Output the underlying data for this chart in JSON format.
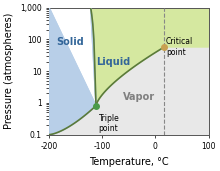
{
  "title": "",
  "xlabel": "Temperature, °C",
  "ylabel": "Pressure (atmospheres)",
  "xlim": [
    -200,
    100
  ],
  "ylim_log": [
    0.1,
    1000
  ],
  "xticks": [
    -200,
    -100,
    0,
    100
  ],
  "yticks": [
    0.1,
    1,
    10,
    100,
    1000
  ],
  "ytick_labels": [
    "0.1",
    "1",
    "10",
    "100",
    "1,000"
  ],
  "triple_point": [
    -111.8,
    0.816
  ],
  "critical_point": [
    16.6,
    57.6
  ],
  "solid_color": "#b8cfe8",
  "liquid_color": "#d5e8a0",
  "vapor_color": "#e8e8e8",
  "boundary_color": "#5a7a3a",
  "triple_point_color": "#4a9a4a",
  "critical_point_color": "#c8a050",
  "dashed_line_color": "#888888",
  "label_solid": "Solid",
  "label_liquid": "Liquid",
  "label_vapor": "Vapor",
  "label_triple": "Triple\npoint",
  "label_critical": "Critical\npoint",
  "font_size": 7,
  "label_color": "#336699"
}
